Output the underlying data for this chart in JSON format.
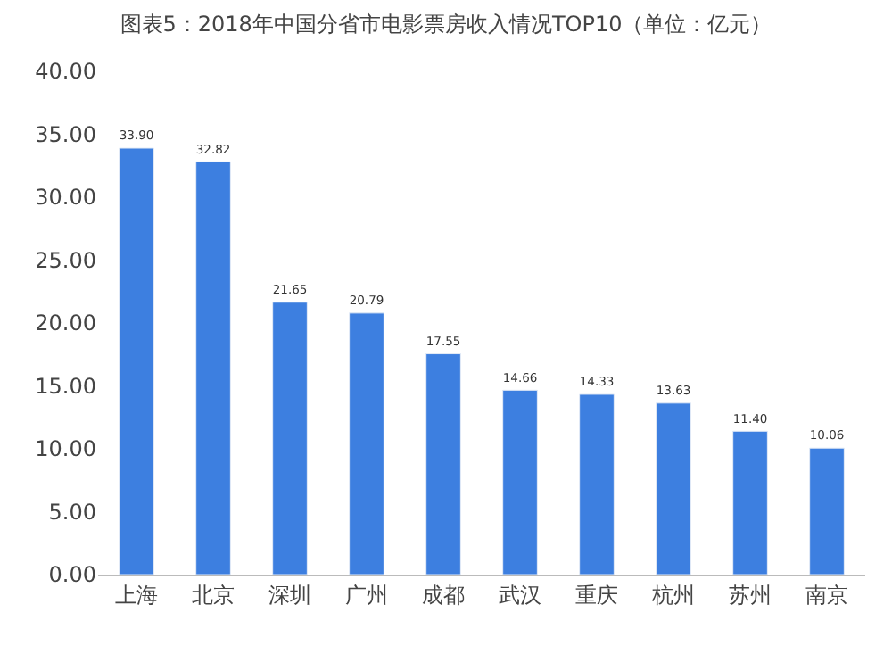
{
  "chart_data": {
    "type": "bar",
    "title": "图表5：2018年中国分省市电影票房收入情况TOP10（单位：亿元）",
    "categories": [
      "上海",
      "北京",
      "深圳",
      "广州",
      "成都",
      "武汉",
      "重庆",
      "杭州",
      "苏州",
      "南京"
    ],
    "values": [
      33.9,
      32.82,
      21.65,
      20.79,
      17.55,
      14.66,
      14.33,
      13.63,
      11.4,
      10.06
    ],
    "value_labels": [
      "33.90",
      "32.82",
      "21.65",
      "20.79",
      "17.55",
      "14.66",
      "14.33",
      "13.63",
      "11.40",
      "10.06"
    ],
    "color": "#3d7fe0",
    "ylim": [
      0,
      40
    ],
    "yticks": [
      {
        "value": 0,
        "label": "0.00"
      },
      {
        "value": 5,
        "label": "5.00"
      },
      {
        "value": 10,
        "label": "10.00"
      },
      {
        "value": 15,
        "label": "15.00"
      },
      {
        "value": 20,
        "label": "20.00"
      },
      {
        "value": 25,
        "label": "25.00"
      },
      {
        "value": 30,
        "label": "30.00"
      },
      {
        "value": 35,
        "label": "35.00"
      },
      {
        "value": 40,
        "label": "40.00"
      }
    ]
  }
}
